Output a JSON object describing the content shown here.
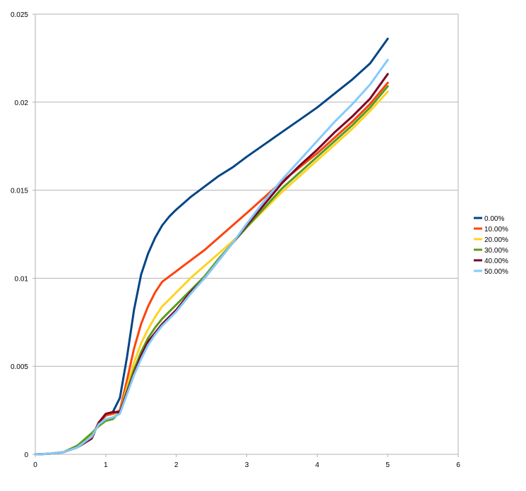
{
  "chart_data": {
    "type": "line",
    "title": "",
    "xlabel": "",
    "ylabel": "",
    "xlim": [
      0,
      6
    ],
    "ylim": [
      0,
      0.025
    ],
    "x_ticks": [
      0,
      1,
      2,
      3,
      4,
      5,
      6
    ],
    "x_tick_labels": [
      "0",
      "1",
      "2",
      "3",
      "4",
      "5",
      "6"
    ],
    "y_ticks": [
      0,
      0.005,
      0.01,
      0.015,
      0.02,
      0.025
    ],
    "y_tick_labels": [
      "0",
      "0.005",
      "0.01",
      "0.015",
      "0.02",
      "0.025"
    ],
    "grid": "horizontal",
    "legend_position": "right",
    "series": [
      {
        "name": "0.00%",
        "color": "#004586",
        "x": [
          0,
          0.2,
          0.4,
          0.6,
          0.8,
          0.9,
          1.0,
          1.1,
          1.2,
          1.3,
          1.4,
          1.5,
          1.6,
          1.7,
          1.8,
          1.9,
          2.0,
          2.2,
          2.4,
          2.6,
          2.8,
          3.0,
          3.25,
          3.5,
          3.75,
          4.0,
          4.25,
          4.5,
          4.75,
          5.0
        ],
        "y": [
          0,
          3e-05,
          0.00012,
          0.0004,
          0.0009,
          0.0018,
          0.0022,
          0.0024,
          0.0032,
          0.0055,
          0.0082,
          0.0102,
          0.0114,
          0.0123,
          0.013,
          0.0135,
          0.0139,
          0.0146,
          0.0152,
          0.0158,
          0.0163,
          0.0169,
          0.0176,
          0.0183,
          0.019,
          0.0197,
          0.0205,
          0.0213,
          0.0222,
          0.0236
        ]
      },
      {
        "name": "10.00%",
        "color": "#ff420e",
        "x": [
          0,
          0.2,
          0.4,
          0.6,
          0.8,
          0.9,
          1.0,
          1.1,
          1.2,
          1.3,
          1.4,
          1.5,
          1.6,
          1.7,
          1.8,
          1.9,
          2.0,
          2.2,
          2.4,
          2.6,
          2.8,
          3.0,
          3.25,
          3.5,
          3.75,
          4.0,
          4.25,
          4.5,
          4.75,
          5.0
        ],
        "y": [
          0,
          3e-05,
          0.00012,
          0.0004,
          0.001,
          0.0018,
          0.0022,
          0.0023,
          0.0025,
          0.0042,
          0.006,
          0.0074,
          0.0084,
          0.0092,
          0.0098,
          0.0101,
          0.0104,
          0.011,
          0.0116,
          0.0123,
          0.013,
          0.0137,
          0.0146,
          0.0155,
          0.0163,
          0.0171,
          0.018,
          0.0189,
          0.0199,
          0.0211
        ]
      },
      {
        "name": "20.00%",
        "color": "#ffd320",
        "x": [
          0,
          0.2,
          0.4,
          0.6,
          0.8,
          0.9,
          1.0,
          1.1,
          1.2,
          1.3,
          1.4,
          1.5,
          1.6,
          1.7,
          1.8,
          1.9,
          2.0,
          2.2,
          2.4,
          2.6,
          2.8,
          3.0,
          3.25,
          3.5,
          3.75,
          4.0,
          4.25,
          4.5,
          4.75,
          5.0
        ],
        "y": [
          0,
          3e-05,
          0.00012,
          0.0004,
          0.0011,
          0.0017,
          0.002,
          0.0021,
          0.0024,
          0.0038,
          0.0052,
          0.0063,
          0.0071,
          0.0078,
          0.0084,
          0.0088,
          0.0092,
          0.01,
          0.0107,
          0.0114,
          0.0121,
          0.0129,
          0.0139,
          0.0149,
          0.0158,
          0.0167,
          0.0176,
          0.0185,
          0.0195,
          0.0206
        ]
      },
      {
        "name": "30.00%",
        "color": "#579d1c",
        "x": [
          0,
          0.2,
          0.4,
          0.6,
          0.8,
          0.9,
          1.0,
          1.1,
          1.2,
          1.3,
          1.4,
          1.5,
          1.6,
          1.7,
          1.8,
          1.9,
          2.0,
          2.2,
          2.4,
          2.6,
          2.8,
          3.0,
          3.25,
          3.5,
          3.75,
          4.0,
          4.25,
          4.5,
          4.75,
          5.0
        ],
        "y": [
          0,
          3e-05,
          0.00012,
          0.0005,
          0.0012,
          0.0016,
          0.0019,
          0.002,
          0.0024,
          0.0036,
          0.0048,
          0.0058,
          0.0066,
          0.0072,
          0.0077,
          0.0081,
          0.0085,
          0.0093,
          0.0101,
          0.0111,
          0.012,
          0.0129,
          0.014,
          0.0151,
          0.016,
          0.0169,
          0.0178,
          0.0187,
          0.0197,
          0.0209
        ]
      },
      {
        "name": "40.00%",
        "color": "#7e0021",
        "x": [
          0,
          0.2,
          0.4,
          0.6,
          0.8,
          0.9,
          1.0,
          1.1,
          1.2,
          1.3,
          1.4,
          1.5,
          1.6,
          1.7,
          1.8,
          1.9,
          2.0,
          2.2,
          2.4,
          2.6,
          2.8,
          3.0,
          3.25,
          3.5,
          3.75,
          4.0,
          4.25,
          4.5,
          4.75,
          5.0
        ],
        "y": [
          0,
          3e-05,
          0.00012,
          0.0004,
          0.0009,
          0.0018,
          0.0023,
          0.0024,
          0.0024,
          0.0035,
          0.0046,
          0.0056,
          0.0064,
          0.0069,
          0.0074,
          0.0078,
          0.0082,
          0.0092,
          0.01,
          0.011,
          0.012,
          0.013,
          0.0142,
          0.0154,
          0.0164,
          0.0173,
          0.0183,
          0.0192,
          0.0202,
          0.0216
        ]
      },
      {
        "name": "50.00%",
        "color": "#83caff",
        "x": [
          0,
          0.2,
          0.4,
          0.6,
          0.8,
          0.9,
          1.0,
          1.1,
          1.2,
          1.3,
          1.4,
          1.5,
          1.6,
          1.7,
          1.8,
          1.9,
          2.0,
          2.2,
          2.4,
          2.6,
          2.8,
          3.0,
          3.25,
          3.5,
          3.75,
          4.0,
          4.25,
          4.5,
          4.75,
          5.0
        ],
        "y": [
          0,
          3e-05,
          0.00012,
          0.0004,
          0.001,
          0.0017,
          0.002,
          0.0021,
          0.0023,
          0.0034,
          0.0045,
          0.0054,
          0.0062,
          0.0068,
          0.0073,
          0.0077,
          0.0081,
          0.0091,
          0.01,
          0.011,
          0.012,
          0.0131,
          0.0144,
          0.0156,
          0.0167,
          0.0178,
          0.0189,
          0.0199,
          0.021,
          0.0224
        ]
      }
    ]
  }
}
